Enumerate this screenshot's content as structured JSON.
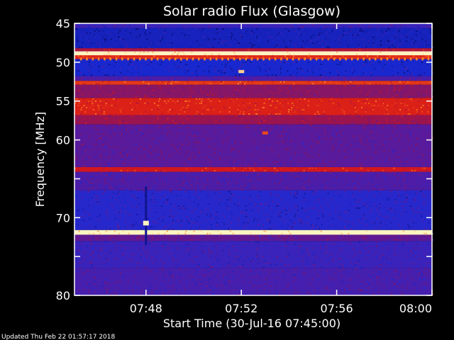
{
  "footer": {
    "updated": "Updated Thu Feb 22 01:57:17 2018"
  },
  "chart_data": {
    "type": "heatmap",
    "title": "Solar radio Flux (Glasgow)",
    "xlabel": "Start Time (30-Jul-16 07:45:00)",
    "ylabel": "Frequency [MHz]",
    "x_unit": "time",
    "xlim": [
      "07:45",
      "08:00"
    ],
    "ylim": [
      45,
      80
    ],
    "y_inverted": true,
    "x_ticks": [
      "07:48",
      "07:52",
      "07:56",
      "08:00"
    ],
    "y_ticks": [
      45,
      50,
      55,
      60,
      65,
      70,
      75,
      80
    ],
    "y_tick_labels": [
      "45",
      "50",
      "55",
      "60",
      "",
      "70",
      "",
      "80"
    ],
    "grid": false,
    "colormap": [
      "#0a0a6e",
      "#1a2bd9",
      "#5a1a9a",
      "#9a1450",
      "#d81818",
      "#ff7a18",
      "#fff4c0"
    ],
    "frequency_bands": [
      {
        "from": 45.0,
        "to": 45.6,
        "level": 0.25
      },
      {
        "from": 45.6,
        "to": 48.2,
        "level": 0.12
      },
      {
        "from": 48.2,
        "to": 48.6,
        "level": 0.55
      },
      {
        "from": 48.6,
        "to": 49.1,
        "level": 1.0
      },
      {
        "from": 49.1,
        "to": 49.6,
        "level": 0.7
      },
      {
        "from": 49.6,
        "to": 51.8,
        "level": 0.15
      },
      {
        "from": 51.8,
        "to": 52.4,
        "level": 0.3
      },
      {
        "from": 52.4,
        "to": 52.9,
        "level": 0.72
      },
      {
        "from": 52.9,
        "to": 54.6,
        "level": 0.45
      },
      {
        "from": 54.6,
        "to": 56.8,
        "level": 0.68
      },
      {
        "from": 56.8,
        "to": 58.0,
        "level": 0.5
      },
      {
        "from": 58.0,
        "to": 63.5,
        "level": 0.33
      },
      {
        "from": 63.5,
        "to": 64.1,
        "level": 0.65
      },
      {
        "from": 64.1,
        "to": 66.5,
        "level": 0.3
      },
      {
        "from": 66.5,
        "to": 71.6,
        "level": 0.2
      },
      {
        "from": 71.6,
        "to": 72.2,
        "level": 1.0
      },
      {
        "from": 72.2,
        "to": 73.0,
        "level": 0.35
      },
      {
        "from": 73.0,
        "to": 76.5,
        "level": 0.25
      },
      {
        "from": 76.5,
        "to": 80.0,
        "level": 0.28
      }
    ],
    "features": [
      {
        "time": "07:52",
        "freq_from": 51.0,
        "freq_to": 51.4,
        "level": 0.95
      },
      {
        "time": "07:53",
        "freq_from": 58.9,
        "freq_to": 59.3,
        "level": 0.75
      },
      {
        "time": "07:48",
        "freq_from": 66.0,
        "freq_to": 73.5,
        "level": 0.05
      },
      {
        "time": "07:48",
        "freq_from": 70.4,
        "freq_to": 71.0,
        "level": 1.0
      }
    ]
  }
}
